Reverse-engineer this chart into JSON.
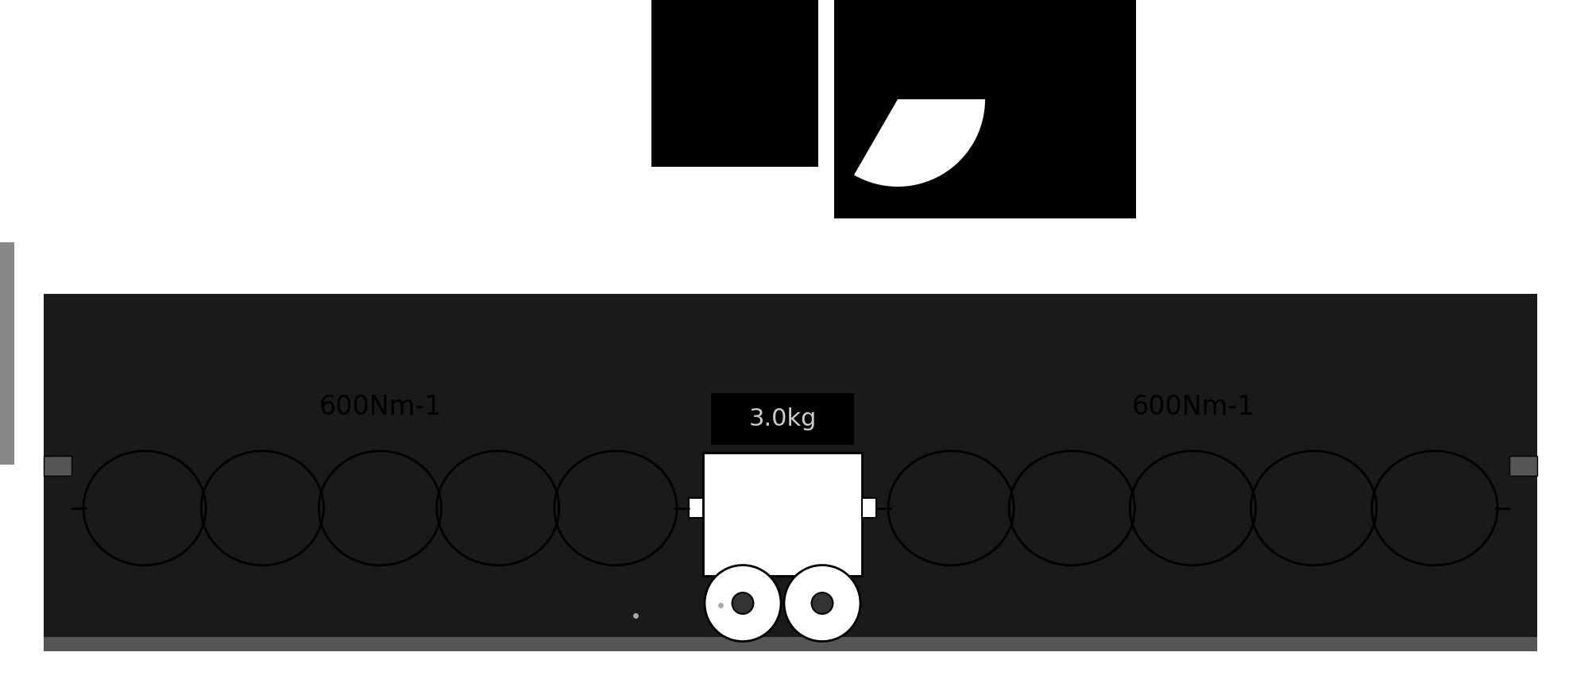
{
  "bg_color": "#ffffff",
  "platform_color": "#1a1a1a",
  "platform_edge_color": "#000000",
  "spring_color": "#000000",
  "trolley_color": "#ffffff",
  "trolley_border_color": "#000000",
  "wheel_color": "#ffffff",
  "wheel_border_color": "#000000",
  "text_color": "#000000",
  "label_left": "600Nm-1",
  "label_right": "600Nm-1",
  "label_mass": "3.0kg",
  "wall_notch_color": "#000000",
  "figure_width": 20.09,
  "figure_height": 8.65,
  "dpi": 100,
  "top_block1_color": "#000000",
  "top_block2_color": "#000000",
  "top_block3_color": "#000000"
}
